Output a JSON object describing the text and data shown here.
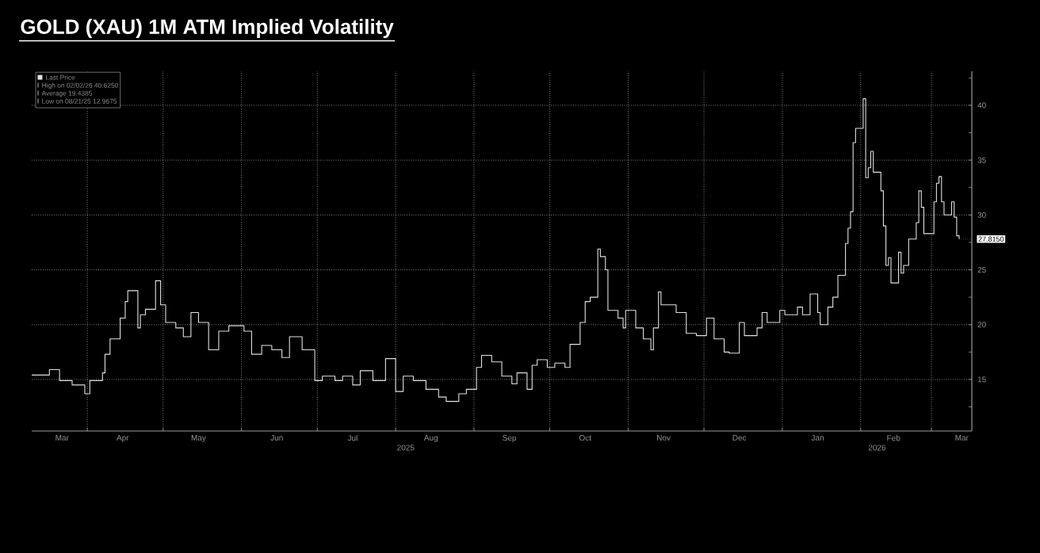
{
  "chart_data": {
    "type": "step",
    "title": "GOLD (XAU) 1M ATM Implied Volatility",
    "x": [
      "2025-03-10",
      "2025-03-17",
      "2025-03-21",
      "2025-03-26",
      "2025-03-31",
      "2025-04-02",
      "2025-04-07",
      "2025-04-08",
      "2025-04-10",
      "2025-04-14",
      "2025-04-16",
      "2025-04-17",
      "2025-04-21",
      "2025-04-22",
      "2025-04-24",
      "2025-04-28",
      "2025-04-30",
      "2025-05-02",
      "2025-05-06",
      "2025-05-09",
      "2025-05-12",
      "2025-05-15",
      "2025-05-19",
      "2025-05-23",
      "2025-05-27",
      "2025-06-02",
      "2025-06-05",
      "2025-06-09",
      "2025-06-13",
      "2025-06-17",
      "2025-06-20",
      "2025-06-25",
      "2025-06-30",
      "2025-07-03",
      "2025-07-08",
      "2025-07-11",
      "2025-07-15",
      "2025-07-18",
      "2025-07-23",
      "2025-07-28",
      "2025-08-01",
      "2025-08-04",
      "2025-08-08",
      "2025-08-13",
      "2025-08-18",
      "2025-08-21",
      "2025-08-26",
      "2025-08-29",
      "2025-09-02",
      "2025-09-04",
      "2025-09-08",
      "2025-09-12",
      "2025-09-16",
      "2025-09-18",
      "2025-09-22",
      "2025-09-24",
      "2025-09-26",
      "2025-09-30",
      "2025-10-03",
      "2025-10-07",
      "2025-10-09",
      "2025-10-13",
      "2025-10-15",
      "2025-10-17",
      "2025-10-20",
      "2025-10-21",
      "2025-10-23",
      "2025-10-24",
      "2025-10-28",
      "2025-10-30",
      "2025-10-31",
      "2025-11-04",
      "2025-11-07",
      "2025-11-10",
      "2025-11-11",
      "2025-11-13",
      "2025-11-14",
      "2025-11-20",
      "2025-11-24",
      "2025-11-28",
      "2025-12-02",
      "2025-12-05",
      "2025-12-09",
      "2025-12-11",
      "2025-12-15",
      "2025-12-17",
      "2025-12-22",
      "2025-12-24",
      "2025-12-26",
      "2025-12-31",
      "2026-01-02",
      "2026-01-07",
      "2026-01-09",
      "2026-01-12",
      "2026-01-15",
      "2026-01-16",
      "2026-01-19",
      "2026-01-21",
      "2026-01-23",
      "2026-01-26",
      "2026-01-27",
      "2026-01-28",
      "2026-01-29",
      "2026-01-30",
      "2026-02-02",
      "2026-02-03",
      "2026-02-04",
      "2026-02-05",
      "2026-02-06",
      "2026-02-09",
      "2026-02-10",
      "2026-02-11",
      "2026-02-12",
      "2026-02-13",
      "2026-02-16",
      "2026-02-17",
      "2026-02-18",
      "2026-02-20",
      "2026-02-23",
      "2026-02-24",
      "2026-02-25",
      "2026-02-26",
      "2026-02-27",
      "2026-03-02",
      "2026-03-03",
      "2026-03-04",
      "2026-03-05",
      "2026-03-06",
      "2026-03-09",
      "2026-03-10",
      "2026-03-11",
      "2026-03-12"
    ],
    "series": [
      {
        "name": "Last Price",
        "color": "#e0e0e0",
        "values": [
          15.4,
          15.9,
          14.9,
          14.5,
          13.7,
          14.9,
          15.6,
          17.3,
          18.7,
          20.6,
          22.1,
          23.1,
          19.7,
          20.9,
          21.4,
          24.0,
          21.8,
          20.2,
          19.7,
          18.9,
          21.1,
          20.2,
          17.7,
          19.4,
          19.9,
          19.4,
          17.3,
          18.1,
          17.7,
          17.0,
          18.9,
          17.7,
          14.9,
          15.3,
          14.9,
          15.3,
          14.5,
          15.8,
          14.9,
          16.9,
          13.9,
          15.3,
          14.9,
          14.1,
          13.4,
          13.0,
          13.7,
          14.1,
          16.1,
          17.2,
          16.6,
          15.3,
          14.6,
          15.6,
          14.1,
          16.3,
          16.8,
          16.1,
          16.5,
          16.1,
          18.2,
          20.2,
          22.1,
          22.5,
          26.9,
          26.2,
          25.0,
          21.3,
          20.6,
          19.7,
          21.3,
          19.7,
          18.7,
          17.7,
          19.7,
          23.0,
          21.8,
          21.1,
          19.2,
          19.0,
          20.6,
          18.7,
          17.5,
          17.4,
          20.2,
          19.0,
          19.7,
          21.1,
          20.2,
          21.3,
          20.9,
          21.6,
          20.9,
          22.8,
          21.1,
          20.0,
          21.6,
          22.5,
          24.5,
          27.4,
          28.8,
          30.3,
          36.6,
          37.9,
          40.6,
          33.4,
          34.3,
          35.8,
          33.9,
          32.2,
          29.0,
          25.4,
          26.1,
          23.8,
          26.6,
          24.7,
          25.4,
          27.8,
          29.3,
          32.2,
          30.7,
          28.3,
          28.3,
          31.2,
          32.9,
          33.5,
          31.2,
          30.0,
          31.2,
          29.8,
          28.1,
          27.8
        ]
      }
    ],
    "xlim": [
      "2025-03-10",
      "2026-03-17"
    ],
    "xticks": [
      {
        "value": "2025-03-22",
        "label": "Mar"
      },
      {
        "value": "2025-04-01",
        "label": null
      },
      {
        "value": "2025-04-15",
        "label": "Apr"
      },
      {
        "value": "2025-05-01",
        "label": null
      },
      {
        "value": "2025-05-15",
        "label": "May"
      },
      {
        "value": "2025-06-01",
        "label": null
      },
      {
        "value": "2025-06-15",
        "label": "Jun"
      },
      {
        "value": "2025-07-01",
        "label": null
      },
      {
        "value": "2025-07-15",
        "label": "Jul"
      },
      {
        "value": "2025-08-01",
        "label": null
      },
      {
        "value": "2025-08-15",
        "label": "Aug"
      },
      {
        "value": "2025-09-01",
        "label": null
      },
      {
        "value": "2025-09-15",
        "label": "Sep"
      },
      {
        "value": "2025-10-01",
        "label": null
      },
      {
        "value": "2025-10-15",
        "label": "Oct"
      },
      {
        "value": "2025-11-01",
        "label": null
      },
      {
        "value": "2025-11-15",
        "label": "Nov"
      },
      {
        "value": "2025-12-01",
        "label": null
      },
      {
        "value": "2025-12-15",
        "label": "Dec"
      },
      {
        "value": "2026-01-01",
        "label": null
      },
      {
        "value": "2026-01-15",
        "label": "Jan"
      },
      {
        "value": "2026-02-01",
        "label": null
      },
      {
        "value": "2026-02-14",
        "label": "Feb"
      },
      {
        "value": "2026-03-01",
        "label": null
      },
      {
        "value": "2026-03-13",
        "label": "Mar"
      }
    ],
    "ylim": [
      10.3,
      43.1
    ],
    "yticks": [
      {
        "value": 12.5,
        "label": null
      },
      15,
      {
        "value": 17.5,
        "label": null
      },
      20,
      {
        "value": 22.5,
        "label": null
      },
      25,
      {
        "value": 27.5,
        "label": null
      },
      30,
      {
        "value": 32.5,
        "label": null
      },
      35,
      {
        "value": 37.5,
        "label": null
      },
      40,
      {
        "value": 42.5,
        "label": null
      }
    ],
    "grid": true,
    "legend": "top left",
    "annotations": [
      {
        "text": "27.8150",
        "x": "2026-03-12",
        "y": 27.8
      },
      "High on 02/02/26 40.6250",
      "Average 19.4385",
      "Low on 08/21/25 12.9675",
      "2025",
      "2026"
    ]
  }
}
